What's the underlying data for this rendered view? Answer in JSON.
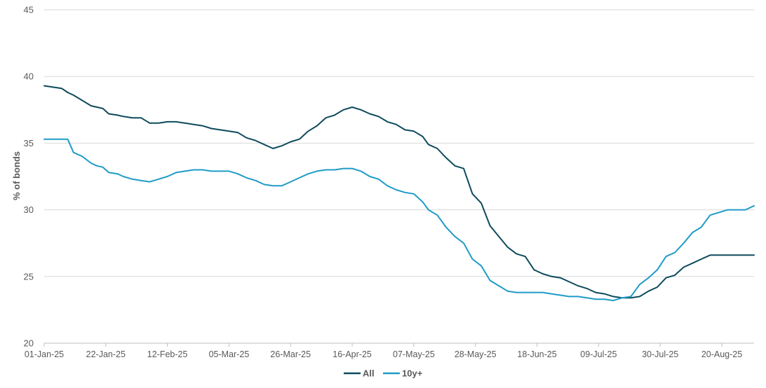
{
  "chart_data": {
    "type": "line",
    "title": "",
    "xlabel": "",
    "ylabel": "% of bonds",
    "ylim": [
      20,
      45
    ],
    "yticks": [
      "20",
      "25",
      "30",
      "35",
      "40",
      "45"
    ],
    "xlim": [
      "2025-01-01",
      "2025-08-31"
    ],
    "xticks": [
      "01-Jan-25",
      "22-Jan-25",
      "12-Feb-25",
      "05-Mar-25",
      "26-Mar-25",
      "16-Apr-25",
      "07-May-25",
      "28-May-25",
      "18-Jun-25",
      "09-Jul-25",
      "30-Jul-25",
      "20-Aug-25"
    ],
    "grid": "horizontal",
    "legend_position": "bottom",
    "colors": {
      "All": "#0d4a5c",
      "10y+": "#1f9bc7"
    },
    "series": [
      {
        "name": "All",
        "x": [
          "2025-01-01",
          "2025-01-04",
          "2025-01-07",
          "2025-01-09",
          "2025-01-11",
          "2025-01-14",
          "2025-01-17",
          "2025-01-19",
          "2025-01-21",
          "2025-01-23",
          "2025-01-26",
          "2025-01-28",
          "2025-01-31",
          "2025-02-03",
          "2025-02-06",
          "2025-02-09",
          "2025-02-12",
          "2025-02-15",
          "2025-02-18",
          "2025-02-21",
          "2025-02-24",
          "2025-02-27",
          "2025-03-02",
          "2025-03-05",
          "2025-03-08",
          "2025-03-11",
          "2025-03-14",
          "2025-03-17",
          "2025-03-20",
          "2025-03-23",
          "2025-03-26",
          "2025-03-29",
          "2025-04-01",
          "2025-04-04",
          "2025-04-07",
          "2025-04-10",
          "2025-04-13",
          "2025-04-16",
          "2025-04-19",
          "2025-04-22",
          "2025-04-25",
          "2025-04-28",
          "2025-05-01",
          "2025-05-04",
          "2025-05-07",
          "2025-05-10",
          "2025-05-12",
          "2025-05-15",
          "2025-05-18",
          "2025-05-21",
          "2025-05-24",
          "2025-05-27",
          "2025-05-30",
          "2025-06-02",
          "2025-06-05",
          "2025-06-08",
          "2025-06-11",
          "2025-06-14",
          "2025-06-17",
          "2025-06-20",
          "2025-06-23",
          "2025-06-26",
          "2025-06-29",
          "2025-07-02",
          "2025-07-05",
          "2025-07-08",
          "2025-07-11",
          "2025-07-14",
          "2025-07-17",
          "2025-07-20",
          "2025-07-23",
          "2025-07-26",
          "2025-07-29",
          "2025-08-01",
          "2025-08-04",
          "2025-08-07",
          "2025-08-10",
          "2025-08-13",
          "2025-08-16",
          "2025-08-19",
          "2025-08-22",
          "2025-08-25",
          "2025-08-28",
          "2025-08-31"
        ],
        "values": [
          39.3,
          39.2,
          39.1,
          38.8,
          38.6,
          38.2,
          37.8,
          37.7,
          37.6,
          37.2,
          37.1,
          37.0,
          36.9,
          36.9,
          36.5,
          36.5,
          36.6,
          36.6,
          36.5,
          36.4,
          36.3,
          36.1,
          36.0,
          35.9,
          35.8,
          35.4,
          35.2,
          34.9,
          34.6,
          34.8,
          35.1,
          35.3,
          35.9,
          36.3,
          36.9,
          37.1,
          37.5,
          37.7,
          37.5,
          37.2,
          37.0,
          36.6,
          36.4,
          36.0,
          35.9,
          35.5,
          34.9,
          34.6,
          33.9,
          33.3,
          33.1,
          31.2,
          30.5,
          28.8,
          28.0,
          27.2,
          26.7,
          26.5,
          25.5,
          25.2,
          25.0,
          24.9,
          24.6,
          24.3,
          24.1,
          23.8,
          23.7,
          23.5,
          23.4,
          23.4,
          23.5,
          23.9,
          24.2,
          24.9,
          25.1,
          25.7,
          26.0,
          26.3,
          26.6,
          26.6,
          26.6,
          26.6,
          26.6,
          26.6
        ]
      },
      {
        "name": "10y+",
        "x": [
          "2025-01-01",
          "2025-01-04",
          "2025-01-07",
          "2025-01-09",
          "2025-01-11",
          "2025-01-14",
          "2025-01-17",
          "2025-01-19",
          "2025-01-21",
          "2025-01-23",
          "2025-01-26",
          "2025-01-28",
          "2025-01-31",
          "2025-02-03",
          "2025-02-06",
          "2025-02-09",
          "2025-02-12",
          "2025-02-15",
          "2025-02-18",
          "2025-02-21",
          "2025-02-24",
          "2025-02-27",
          "2025-03-02",
          "2025-03-05",
          "2025-03-08",
          "2025-03-11",
          "2025-03-14",
          "2025-03-17",
          "2025-03-20",
          "2025-03-23",
          "2025-03-26",
          "2025-03-29",
          "2025-04-01",
          "2025-04-04",
          "2025-04-07",
          "2025-04-10",
          "2025-04-13",
          "2025-04-16",
          "2025-04-19",
          "2025-04-22",
          "2025-04-25",
          "2025-04-28",
          "2025-05-01",
          "2025-05-04",
          "2025-05-07",
          "2025-05-10",
          "2025-05-12",
          "2025-05-15",
          "2025-05-18",
          "2025-05-21",
          "2025-05-24",
          "2025-05-27",
          "2025-05-30",
          "2025-06-02",
          "2025-06-05",
          "2025-06-08",
          "2025-06-11",
          "2025-06-14",
          "2025-06-17",
          "2025-06-20",
          "2025-06-23",
          "2025-06-26",
          "2025-06-29",
          "2025-07-02",
          "2025-07-05",
          "2025-07-08",
          "2025-07-11",
          "2025-07-14",
          "2025-07-17",
          "2025-07-20",
          "2025-07-23",
          "2025-07-26",
          "2025-07-29",
          "2025-08-01",
          "2025-08-04",
          "2025-08-07",
          "2025-08-10",
          "2025-08-13",
          "2025-08-16",
          "2025-08-19",
          "2025-08-22",
          "2025-08-25",
          "2025-08-28",
          "2025-08-31"
        ],
        "values": [
          35.3,
          35.3,
          35.3,
          35.3,
          34.3,
          34.0,
          33.5,
          33.3,
          33.2,
          32.8,
          32.7,
          32.5,
          32.3,
          32.2,
          32.1,
          32.3,
          32.5,
          32.8,
          32.9,
          33.0,
          33.0,
          32.9,
          32.9,
          32.9,
          32.7,
          32.4,
          32.2,
          31.9,
          31.8,
          31.8,
          32.1,
          32.4,
          32.7,
          32.9,
          33.0,
          33.0,
          33.1,
          33.1,
          32.9,
          32.5,
          32.3,
          31.8,
          31.5,
          31.3,
          31.2,
          30.6,
          30.0,
          29.6,
          28.7,
          28.0,
          27.5,
          26.3,
          25.8,
          24.7,
          24.3,
          23.9,
          23.8,
          23.8,
          23.8,
          23.8,
          23.7,
          23.6,
          23.5,
          23.5,
          23.4,
          23.3,
          23.3,
          23.2,
          23.4,
          23.5,
          24.4,
          24.9,
          25.5,
          26.5,
          26.8,
          27.5,
          28.3,
          28.7,
          29.6,
          29.8,
          30.0,
          30.0,
          30.0,
          30.3
        ]
      }
    ]
  }
}
